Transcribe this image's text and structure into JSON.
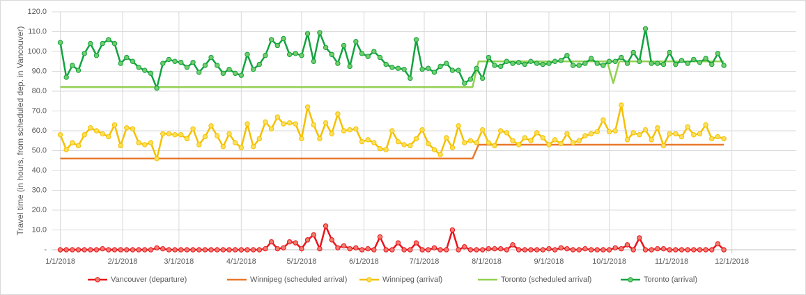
{
  "chart_data": {
    "type": "line",
    "y_axis_label": "Travel time (in hours, from scheduled dep. in Vancouver)",
    "xlim": [
      "12/28/2017",
      "1/2/2019"
    ],
    "xticks": [
      "1/1/2018",
      "2/1/2018",
      "3/1/2018",
      "4/1/2018",
      "5/1/2018",
      "6/1/2018",
      "7/1/2018",
      "8/1/2018",
      "9/1/2018",
      "10/1/2018",
      "11/1/2018",
      "12/1/2018"
    ],
    "ylim": [
      0,
      120
    ],
    "yticks": [
      {
        "value": 0,
        "label": "-"
      },
      {
        "value": 10,
        "label": "10.0"
      },
      {
        "value": 20,
        "label": "20.0"
      },
      {
        "value": 30,
        "label": "30.0"
      },
      {
        "value": 40,
        "label": "40.0"
      },
      {
        "value": 50,
        "label": "50.0"
      },
      {
        "value": 60,
        "label": "60.0"
      },
      {
        "value": 70,
        "label": "70.0"
      },
      {
        "value": 80,
        "label": "80.0"
      },
      {
        "value": 90,
        "label": "90.0"
      },
      {
        "value": 100,
        "label": "100.0"
      },
      {
        "value": 110,
        "label": "110.0"
      },
      {
        "value": 120,
        "label": "120.0"
      }
    ],
    "grid": true,
    "legend": "bottom",
    "x": [
      "1/1/2018",
      "1/4/2018",
      "1/7/2018",
      "1/10/2018",
      "1/13/2018",
      "1/16/2018",
      "1/19/2018",
      "1/22/2018",
      "1/25/2018",
      "1/28/2018",
      "1/31/2018",
      "2/3/2018",
      "2/6/2018",
      "2/9/2018",
      "2/12/2018",
      "2/15/2018",
      "2/18/2018",
      "2/21/2018",
      "2/24/2018",
      "2/27/2018",
      "3/2/2018",
      "3/5/2018",
      "3/8/2018",
      "3/11/2018",
      "3/14/2018",
      "3/17/2018",
      "3/20/2018",
      "3/23/2018",
      "3/26/2018",
      "3/29/2018",
      "4/1/2018",
      "4/4/2018",
      "4/7/2018",
      "4/10/2018",
      "4/13/2018",
      "4/16/2018",
      "4/19/2018",
      "4/22/2018",
      "4/25/2018",
      "4/28/2018",
      "5/1/2018",
      "5/4/2018",
      "5/7/2018",
      "5/10/2018",
      "5/13/2018",
      "5/16/2018",
      "5/19/2018",
      "5/22/2018",
      "5/25/2018",
      "5/28/2018",
      "5/31/2018",
      "6/3/2018",
      "6/6/2018",
      "6/9/2018",
      "6/12/2018",
      "6/15/2018",
      "6/18/2018",
      "6/21/2018",
      "6/24/2018",
      "6/27/2018",
      "6/30/2018",
      "7/3/2018",
      "7/6/2018",
      "7/9/2018",
      "7/12/2018",
      "7/15/2018",
      "7/18/2018",
      "7/21/2018",
      "7/24/2018",
      "7/27/2018",
      "7/30/2018",
      "8/2/2018",
      "8/5/2018",
      "8/8/2018",
      "8/11/2018",
      "8/14/2018",
      "8/17/2018",
      "8/20/2018",
      "8/23/2018",
      "8/26/2018",
      "8/29/2018",
      "9/1/2018",
      "9/4/2018",
      "9/7/2018",
      "9/10/2018",
      "9/13/2018",
      "9/16/2018",
      "9/19/2018",
      "9/22/2018",
      "9/25/2018",
      "9/28/2018",
      "10/1/2018",
      "10/4/2018",
      "10/7/2018",
      "10/10/2018",
      "10/13/2018",
      "10/16/2018",
      "10/19/2018",
      "10/22/2018",
      "10/25/2018",
      "10/28/2018",
      "10/31/2018",
      "11/3/2018",
      "11/6/2018",
      "11/9/2018",
      "11/12/2018",
      "11/15/2018",
      "11/18/2018",
      "11/21/2018",
      "11/24/2018",
      "11/27/2018"
    ],
    "series": [
      {
        "name": "Vancouver (departure)",
        "color": "#e8141c",
        "marker_color": "#f27a6e",
        "markers": true,
        "values": [
          0,
          0,
          0,
          0,
          0,
          0,
          0,
          0.5,
          0,
          0,
          0,
          0,
          0,
          0,
          0,
          0,
          1,
          0.5,
          0,
          0,
          0,
          0,
          0,
          0,
          0,
          0,
          0,
          0,
          0,
          0,
          0,
          0,
          0,
          0,
          0.5,
          4,
          0.5,
          1,
          4,
          3.5,
          0.5,
          5,
          7.5,
          0.5,
          12,
          5,
          1,
          2,
          0.5,
          1,
          0,
          0.5,
          0,
          6.5,
          0,
          0,
          3.5,
          0,
          0,
          3.5,
          0,
          0,
          1,
          0,
          0,
          10,
          0,
          1.5,
          0,
          0,
          0,
          0.5,
          0.5,
          0.5,
          0,
          2.5,
          0,
          0,
          0,
          0,
          0,
          0.5,
          0,
          1,
          0.5,
          0,
          0,
          0.5,
          0,
          0,
          0,
          0,
          1,
          0.5,
          2.5,
          0,
          6,
          0,
          0,
          0.5,
          0.5,
          0,
          0,
          0,
          0,
          0,
          0,
          0,
          0,
          3,
          0
        ]
      },
      {
        "name": "Winnipeg (scheduled arrival)",
        "color": "#e8792c",
        "markers": false,
        "x": [
          "1/1/2018",
          "7/25/2018",
          "7/28/2018",
          "11/27/2018"
        ],
        "values": [
          46,
          46,
          53,
          53
        ]
      },
      {
        "name": "Winnipeg (arrival)",
        "color": "#f5c000",
        "marker_color": "#fbe05a",
        "markers": true,
        "values": [
          58,
          50.5,
          54,
          52.5,
          58,
          61.5,
          60,
          58.5,
          57,
          63,
          52.5,
          61.5,
          61,
          54,
          53,
          54,
          46,
          58.5,
          58.5,
          58,
          58,
          56,
          61,
          53,
          57,
          62.5,
          57.5,
          52,
          58.5,
          54,
          51.5,
          63.5,
          52,
          56,
          64.5,
          61,
          67,
          63.5,
          64,
          63.5,
          56,
          72,
          63,
          56,
          64,
          58.5,
          68.5,
          60,
          60.5,
          61,
          54.5,
          55.5,
          54,
          51,
          50.5,
          60,
          54.5,
          53,
          52.5,
          56,
          60.5,
          53.5,
          50.5,
          48,
          56.5,
          51.5,
          62.5,
          54,
          55,
          54,
          60.5,
          54,
          52.5,
          60,
          59,
          55,
          53,
          56.5,
          55,
          59,
          56.5,
          53,
          55.5,
          53.5,
          58.5,
          54,
          55,
          57.5,
          58.5,
          59.5,
          65.5,
          59.5,
          60,
          73,
          55.5,
          59,
          58,
          60.5,
          55.5,
          61.5,
          52.5,
          58.5,
          58.5,
          57,
          62,
          58,
          58.5,
          63,
          56,
          57,
          56
        ]
      },
      {
        "name": "Toronto (scheduled arrival)",
        "color": "#92d050",
        "markers": false,
        "x": [
          "1/1/2018",
          "7/25/2018",
          "7/28/2018",
          "9/30/2018",
          "10/3/2018",
          "10/6/2018",
          "11/27/2018"
        ],
        "values": [
          82,
          82,
          95,
          95,
          84,
          95,
          95
        ]
      },
      {
        "name": "Toronto (arrival)",
        "color": "#12a33f",
        "marker_color": "#72cc6a",
        "markers": true,
        "values": [
          104.5,
          87,
          93,
          90.5,
          99,
          104,
          98,
          104,
          106,
          104,
          94,
          97,
          95,
          92,
          90.5,
          89,
          81.5,
          94,
          96,
          95,
          94.5,
          92,
          94.5,
          89.5,
          93,
          97,
          93,
          89,
          91,
          89,
          88,
          98.5,
          91,
          93.5,
          98,
          106,
          103,
          106.5,
          98.5,
          99,
          98,
          109,
          95,
          109.5,
          102,
          98.5,
          94,
          103,
          92.5,
          105,
          99,
          97.5,
          100,
          97,
          93.5,
          92,
          91.5,
          91,
          86.5,
          106,
          91,
          91.5,
          89.5,
          92.5,
          94,
          90.5,
          90.5,
          84,
          86,
          91.5,
          86.5,
          97,
          93,
          92.5,
          95,
          94,
          94.5,
          93.5,
          95,
          94,
          93.5,
          94,
          95,
          95.5,
          98,
          93,
          93,
          94,
          96.5,
          94,
          93,
          95,
          95,
          97,
          94,
          99.5,
          95,
          111.5,
          94,
          94,
          93.5,
          99.5,
          93.5,
          95.5,
          94,
          96,
          94.5,
          96.5,
          93.5,
          99,
          93
        ]
      }
    ]
  }
}
